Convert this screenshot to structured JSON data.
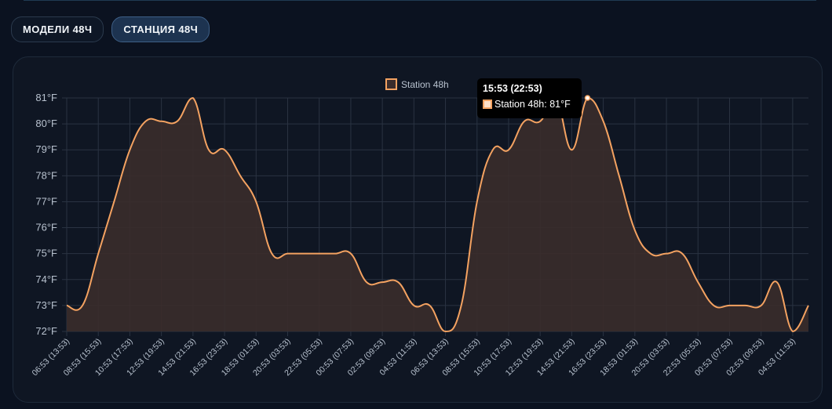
{
  "tabs": [
    {
      "label": "МОДЕЛИ 48Ч",
      "active": false
    },
    {
      "label": "СТАНЦИЯ 48Ч",
      "active": true
    }
  ],
  "tooltip": {
    "title": "15:53 (22:53)",
    "label": "Station 48h: 81°F"
  },
  "colors": {
    "line": "#f4a261",
    "fill": "#3a2c2b",
    "grid": "#2a3342",
    "tick": "#b8c2cf",
    "background": "#0f1623"
  },
  "chart_data": {
    "type": "area",
    "title": "",
    "xlabel": "",
    "ylabel": "",
    "ylim": [
      72,
      81
    ],
    "y_unit": "°F",
    "yticks": [
      "72°F",
      "73°F",
      "74°F",
      "75°F",
      "76°F",
      "77°F",
      "78°F",
      "79°F",
      "80°F",
      "81°F"
    ],
    "grid": true,
    "legend": "top-center",
    "x_labels": [
      "06:53 (13:53)",
      "08:53 (15:53)",
      "10:53 (17:53)",
      "12:53 (19:53)",
      "14:53 (21:53)",
      "16:53 (23:53)",
      "18:53 (01:53)",
      "20:53 (03:53)",
      "22:53 (05:53)",
      "00:53 (07:53)",
      "02:53 (09:53)",
      "04:53 (11:53)",
      "06:53 (13:53)",
      "08:53 (15:53)",
      "10:53 (17:53)",
      "12:53 (19:53)",
      "14:53 (21:53)",
      "16:53 (23:53)",
      "18:53 (01:53)",
      "20:53 (03:53)",
      "22:53 (05:53)",
      "00:53 (07:53)",
      "02:53 (09:53)",
      "04:53 (11:53)"
    ],
    "series": [
      {
        "name": "Station 48h",
        "values": [
          73,
          73,
          75,
          77,
          79,
          80.1,
          80.1,
          80.1,
          81,
          79,
          79,
          78,
          77,
          75,
          75,
          75,
          75,
          75,
          75,
          73.9,
          73.9,
          73.9,
          73,
          73,
          72,
          73,
          77,
          79,
          79,
          80.1,
          80.1,
          81,
          79,
          81,
          80.1,
          78,
          75.9,
          75,
          75,
          75,
          73.9,
          73,
          73,
          73,
          73,
          73.9,
          72,
          73
        ]
      }
    ]
  }
}
